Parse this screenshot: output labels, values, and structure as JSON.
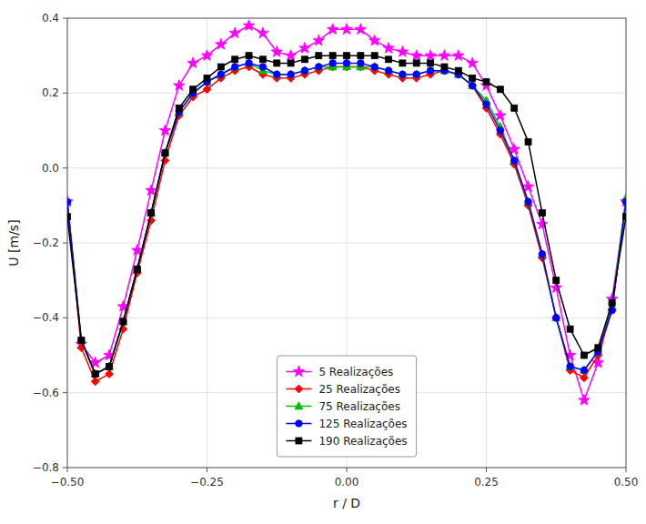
{
  "chart_data": {
    "type": "line",
    "xlabel": "r / D",
    "ylabel": "U [m/s]",
    "x": [
      -0.5,
      -0.475,
      -0.45,
      -0.425,
      -0.4,
      -0.375,
      -0.35,
      -0.325,
      -0.3,
      -0.275,
      -0.25,
      -0.225,
      -0.2,
      -0.175,
      -0.15,
      -0.125,
      -0.1,
      -0.075,
      -0.05,
      -0.025,
      0.0,
      0.025,
      0.05,
      0.075,
      0.1,
      0.125,
      0.15,
      0.175,
      0.2,
      0.225,
      0.25,
      0.275,
      0.3,
      0.325,
      0.35,
      0.375,
      0.4,
      0.425,
      0.45,
      0.475,
      0.5
    ],
    "series": [
      {
        "name": "5 Realizações",
        "color": "#ff00ff",
        "marker": "star",
        "values": [
          -0.09,
          -0.47,
          -0.52,
          -0.5,
          -0.37,
          -0.22,
          -0.06,
          0.1,
          0.22,
          0.28,
          0.3,
          0.33,
          0.36,
          0.38,
          0.36,
          0.31,
          0.3,
          0.32,
          0.34,
          0.37,
          0.37,
          0.37,
          0.34,
          0.32,
          0.31,
          0.3,
          0.3,
          0.3,
          0.3,
          0.28,
          0.22,
          0.14,
          0.05,
          -0.05,
          -0.15,
          -0.32,
          -0.5,
          -0.62,
          -0.52,
          -0.35,
          -0.09
        ]
      },
      {
        "name": "25 Realizações",
        "color": "#ff0000",
        "marker": "diamond",
        "values": [
          -0.09,
          -0.48,
          -0.57,
          -0.55,
          -0.43,
          -0.28,
          -0.14,
          0.02,
          0.14,
          0.19,
          0.21,
          0.24,
          0.26,
          0.27,
          0.25,
          0.24,
          0.24,
          0.25,
          0.26,
          0.27,
          0.27,
          0.27,
          0.26,
          0.25,
          0.24,
          0.24,
          0.25,
          0.26,
          0.25,
          0.22,
          0.16,
          0.09,
          0.01,
          -0.1,
          -0.24,
          -0.4,
          -0.54,
          -0.56,
          -0.5,
          -0.38,
          -0.09
        ]
      },
      {
        "name": "75 Realizações",
        "color": "#00bb00",
        "marker": "triangle",
        "values": [
          -0.09,
          -0.46,
          -0.55,
          -0.53,
          -0.41,
          -0.27,
          -0.12,
          0.04,
          0.15,
          0.2,
          0.23,
          0.25,
          0.27,
          0.28,
          0.26,
          0.25,
          0.25,
          0.26,
          0.27,
          0.27,
          0.27,
          0.27,
          0.27,
          0.26,
          0.25,
          0.25,
          0.26,
          0.26,
          0.25,
          0.22,
          0.18,
          0.11,
          0.02,
          -0.09,
          -0.23,
          -0.4,
          -0.53,
          -0.54,
          -0.49,
          -0.37,
          -0.08
        ]
      },
      {
        "name": "125 Realizações",
        "color": "#0000ff",
        "marker": "circle",
        "values": [
          -0.09,
          -0.46,
          -0.55,
          -0.53,
          -0.41,
          -0.27,
          -0.12,
          0.04,
          0.15,
          0.2,
          0.23,
          0.25,
          0.27,
          0.28,
          0.27,
          0.25,
          0.25,
          0.26,
          0.27,
          0.28,
          0.28,
          0.28,
          0.27,
          0.26,
          0.25,
          0.25,
          0.26,
          0.26,
          0.25,
          0.22,
          0.17,
          0.1,
          0.02,
          -0.09,
          -0.23,
          -0.4,
          -0.53,
          -0.54,
          -0.49,
          -0.38,
          -0.09
        ]
      },
      {
        "name": "190 Realizações",
        "color": "#000000",
        "marker": "square",
        "values": [
          -0.13,
          -0.46,
          -0.55,
          -0.53,
          -0.41,
          -0.27,
          -0.12,
          0.04,
          0.16,
          0.21,
          0.24,
          0.27,
          0.29,
          0.3,
          0.29,
          0.28,
          0.28,
          0.29,
          0.3,
          0.3,
          0.3,
          0.3,
          0.3,
          0.29,
          0.28,
          0.28,
          0.28,
          0.27,
          0.26,
          0.24,
          0.23,
          0.21,
          0.16,
          0.07,
          -0.12,
          -0.3,
          -0.43,
          -0.5,
          -0.48,
          -0.36,
          -0.13
        ]
      }
    ],
    "xlim": [
      -0.5,
      0.5
    ],
    "xticks": [
      {
        "value": -0.5,
        "label": "−0.50"
      },
      {
        "value": -0.25,
        "label": "−0.25"
      },
      {
        "value": 0,
        "label": "0.00"
      },
      0.25,
      {
        "value": 0.5,
        "label": "0.50"
      }
    ],
    "ylim": [
      -0.8,
      0.4
    ],
    "yticks": [
      {
        "value": -0.8,
        "label": "−0.8"
      },
      {
        "value": -0.6,
        "label": "−0.6"
      },
      {
        "value": -0.4,
        "label": "−0.4"
      },
      {
        "value": -0.2,
        "label": "−0.2"
      },
      {
        "value": 0,
        "label": "0.0"
      },
      0.2,
      0.4
    ],
    "grid": true,
    "legend": "lower center"
  }
}
